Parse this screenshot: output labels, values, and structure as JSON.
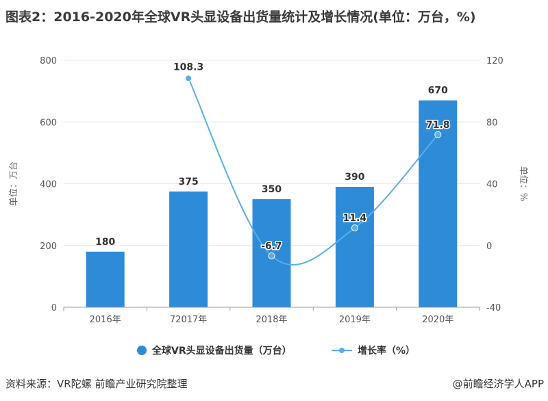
{
  "title": "图表2：2016-2020年全球VR头显设备出货量统计及增长情况(单位：万台，%)",
  "colors": {
    "bar": "#2e8bd8",
    "line": "#5aaee8",
    "grid": "#e6e6e6",
    "axis_text": "#555555"
  },
  "chart_data": {
    "type": "bar",
    "categories": [
      "2016年",
      "72017年",
      "2018年",
      "2019年",
      "2020年"
    ],
    "series": [
      {
        "name": "全球VR头显设备出货量（万台）",
        "type": "bar",
        "axis": "left",
        "values": [
          180,
          375,
          350,
          390,
          670
        ],
        "labels": [
          "180",
          "375",
          "350",
          "390",
          "670"
        ]
      },
      {
        "name": "增长率（%）",
        "type": "line",
        "axis": "right",
        "values": [
          null,
          108.3,
          -6.7,
          11.4,
          71.8
        ],
        "labels": [
          "",
          "108.3",
          "-6.7",
          "11.4",
          "71.8"
        ]
      }
    ],
    "y_left": {
      "label": "单位：万台",
      "range": [
        0,
        800
      ],
      "ticks": [
        "0",
        "200",
        "400",
        "600",
        "800"
      ]
    },
    "y_right": {
      "label": "单位：%",
      "range": [
        -40,
        120
      ],
      "ticks": [
        "-40",
        "0",
        "40",
        "80",
        "120"
      ]
    },
    "grid": true,
    "legend_position": "bottom"
  },
  "legend": {
    "bar_label": "全球VR头显设备出货量（万台）",
    "line_label": "增长率（%）"
  },
  "footer": {
    "source": "资料来源：VR陀螺 前瞻产业研究院整理",
    "credit": "@前瞻经济学人APP"
  }
}
